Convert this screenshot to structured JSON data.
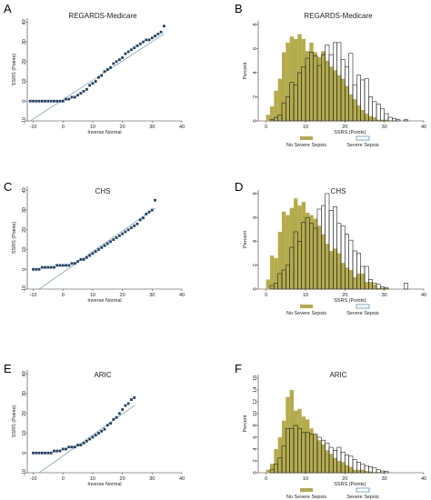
{
  "colors": {
    "qq_marker": "#1f3f66",
    "reference_line": "#5a8a97",
    "no_sepsis_fill": "#b5ab4c",
    "sepsis_outline": "#222222",
    "legend_sepsis_outline": "#3a6aa5",
    "axis": "#333333"
  },
  "chart_data": [
    {
      "panel": "A",
      "type": "scatter",
      "title": "REGARDS-Medicare",
      "xlabel": "Inverse Normal",
      "ylabel": "SSRS (Points)",
      "xlim": [
        -12,
        40
      ],
      "ylim": [
        -10,
        42
      ],
      "xticks": [
        "-10",
        "0",
        "10",
        "20",
        "30",
        "40"
      ],
      "yticks": [
        "-10",
        "0",
        "10",
        "20",
        "30",
        "40"
      ],
      "reference_line": [
        [
          -11,
          -10
        ],
        [
          34,
          34
        ]
      ],
      "x": [
        -11,
        -10,
        -9,
        -8,
        -7,
        -6,
        -5,
        -4,
        -3,
        -2,
        -1,
        0,
        1,
        2,
        3,
        4,
        5,
        6,
        7,
        8,
        9,
        10,
        11,
        12,
        13,
        14,
        15,
        16,
        17,
        18,
        19,
        20,
        21,
        22,
        23,
        24,
        25,
        26,
        27,
        28,
        29,
        30,
        31,
        32,
        33,
        34
      ],
      "y": [
        0,
        0,
        0,
        0,
        0,
        0,
        0,
        0,
        0,
        0,
        0,
        0,
        1,
        1,
        2,
        2,
        3,
        4,
        5,
        6,
        8,
        9,
        10,
        12,
        13,
        15,
        16,
        17,
        19,
        20,
        21,
        22,
        24,
        25,
        26,
        27,
        28,
        29,
        30,
        31,
        31,
        32,
        33,
        34,
        35,
        38
      ]
    },
    {
      "panel": "B",
      "type": "bar",
      "title": "REGARDS-Medicare",
      "xlabel": "SSRS (Points)",
      "ylabel": "Percent",
      "xlim": [
        -2,
        40
      ],
      "ylim": [
        0,
        8.3
      ],
      "xticks": [
        "0",
        "10",
        "20",
        "30",
        "40"
      ],
      "yticks": [
        "0",
        "2",
        "4",
        "6",
        "8"
      ],
      "bin_width": 1,
      "bin_start": [
        0,
        1,
        2,
        3,
        4,
        5,
        6,
        7,
        8,
        9,
        10,
        11,
        12,
        13,
        14,
        15,
        16,
        17,
        18,
        19,
        20,
        21,
        22,
        23,
        24,
        25,
        26,
        27,
        28,
        29,
        30,
        31,
        32,
        33,
        34,
        35
      ],
      "series": [
        {
          "name": "No Severe Sepsis",
          "values": [
            0.5,
            1.2,
            2.5,
            3.5,
            5.7,
            6.5,
            7.0,
            6.8,
            7.2,
            6.8,
            5.8,
            6.5,
            5.7,
            5.3,
            5.8,
            5.0,
            4.5,
            4.2,
            3.8,
            3.5,
            2.9,
            2.2,
            1.8,
            1.3,
            0.9,
            0.6,
            0.4,
            0.3,
            0.1,
            0.1,
            0.1,
            0.0,
            0.0,
            0.0,
            0.0,
            0.0
          ]
        },
        {
          "name": "Severe Sepsis",
          "values": [
            0.0,
            0.1,
            0.3,
            0.5,
            1.5,
            2.0,
            3.2,
            3.0,
            4.0,
            4.5,
            5.2,
            5.7,
            5.4,
            4.6,
            5.5,
            6.3,
            5.5,
            6.5,
            6.5,
            5.1,
            4.5,
            5.6,
            3.0,
            3.8,
            3.4,
            3.5,
            2.0,
            1.6,
            1.4,
            1.0,
            0.6,
            0.3,
            0.2,
            0.1,
            0.0,
            0.1
          ]
        }
      ]
    },
    {
      "panel": "C",
      "type": "scatter",
      "title": "CHS",
      "xlabel": "Inverse Normal",
      "ylabel": "SSRS (Points)",
      "xlim": [
        -12,
        40
      ],
      "ylim": [
        -10,
        42
      ],
      "xticks": [
        "-10",
        "0",
        "10",
        "20",
        "30",
        "40"
      ],
      "yticks": [
        "-10",
        "0",
        "10",
        "20",
        "30",
        "40"
      ],
      "reference_line": [
        [
          -8,
          -10
        ],
        [
          31,
          31
        ]
      ],
      "x": [
        -10,
        -9,
        -8,
        -7,
        -6,
        -5,
        -4,
        -3,
        -2,
        -1,
        0,
        1,
        2,
        3,
        4,
        5,
        6,
        7,
        8,
        9,
        10,
        11,
        12,
        13,
        14,
        15,
        16,
        17,
        18,
        19,
        20,
        21,
        22,
        23,
        24,
        25,
        26,
        27,
        28,
        29,
        30,
        31
      ],
      "y": [
        0,
        0,
        0,
        1,
        1,
        1,
        1,
        1,
        2,
        2,
        2,
        2,
        2,
        3,
        3,
        4,
        5,
        5,
        6,
        7,
        8,
        9,
        10,
        11,
        12,
        13,
        14,
        15,
        16,
        17,
        18,
        19,
        20,
        21,
        22,
        23,
        25,
        26,
        28,
        29,
        30,
        35
      ]
    },
    {
      "panel": "D",
      "type": "bar",
      "title": "CHS",
      "xlabel": "SSRS (Points)",
      "ylabel": "Percent",
      "xlim": [
        -2,
        40
      ],
      "ylim": [
        0,
        8.3
      ],
      "xticks": [
        "0",
        "10",
        "20",
        "30",
        "40"
      ],
      "yticks": [
        "0",
        "2",
        "4",
        "6",
        "8"
      ],
      "bin_width": 1,
      "bin_start": [
        0,
        1,
        2,
        3,
        4,
        5,
        6,
        7,
        8,
        9,
        10,
        11,
        12,
        13,
        14,
        15,
        16,
        17,
        18,
        19,
        20,
        21,
        22,
        23,
        24,
        25,
        26,
        27,
        28,
        29,
        30,
        31,
        32,
        33,
        34,
        35
      ],
      "series": [
        {
          "name": "No Severe Sepsis",
          "values": [
            0.8,
            2.8,
            2.6,
            4.8,
            6.5,
            6.2,
            6.8,
            7.6,
            7.0,
            7.3,
            6.4,
            6.2,
            5.9,
            5.3,
            4.6,
            3.8,
            3.2,
            3.4,
            3.0,
            2.2,
            1.8,
            1.6,
            1.0,
            1.3,
            1.3,
            0.6,
            0.6,
            0.4,
            0.1,
            0.1,
            0.1,
            0.0,
            0.0,
            0.0,
            0.0,
            0.0
          ]
        },
        {
          "name": "Severe Sepsis",
          "values": [
            0.0,
            0.3,
            0.5,
            1.3,
            1.6,
            2.0,
            3.5,
            4.8,
            4.0,
            5.6,
            6.0,
            5.5,
            5.1,
            6.7,
            7.0,
            8.0,
            6.6,
            6.9,
            5.5,
            5.3,
            4.6,
            4.1,
            3.2,
            3.0,
            1.9,
            1.9,
            0.8,
            0.5,
            0.4,
            0.2,
            0.1,
            0.0,
            0.0,
            0.0,
            0.0,
            0.5
          ]
        }
      ]
    },
    {
      "panel": "E",
      "type": "scatter",
      "title": "ARIC",
      "xlabel": "Inverse Normal",
      "ylabel": "SSRS (Points)",
      "xlim": [
        -12,
        40
      ],
      "ylim": [
        -10,
        42
      ],
      "xticks": [
        "-10",
        "0",
        "10",
        "20",
        "30",
        "40"
      ],
      "yticks": [
        "-10",
        "0",
        "10",
        "20",
        "30",
        "40"
      ],
      "reference_line": [
        [
          -8,
          -10
        ],
        [
          24,
          24
        ]
      ],
      "x": [
        -10,
        -9,
        -8,
        -7,
        -6,
        -5,
        -4,
        -3,
        -2,
        -1,
        0,
        1,
        2,
        3,
        4,
        5,
        6,
        7,
        8,
        9,
        10,
        11,
        12,
        13,
        14,
        15,
        16,
        17,
        18,
        19,
        20,
        21,
        22,
        23,
        24
      ],
      "y": [
        0,
        0,
        0,
        0,
        0,
        0,
        0,
        1,
        1,
        1,
        2,
        2,
        3,
        3,
        3,
        4,
        4,
        5,
        6,
        7,
        8,
        9,
        10,
        11,
        12,
        14,
        15,
        17,
        18,
        20,
        22,
        24,
        25,
        27,
        28
      ]
    },
    {
      "panel": "F",
      "type": "bar",
      "title": "ARIC",
      "xlabel": "SSRS (Points)",
      "ylabel": "Percent",
      "xlim": [
        -2,
        40
      ],
      "ylim": [
        0,
        16.6
      ],
      "xticks": [
        "0",
        "10",
        "20",
        "30",
        "40"
      ],
      "yticks": [
        "0",
        "2",
        "4",
        "6",
        "8",
        "10",
        "12",
        "14",
        "16"
      ],
      "bin_width": 1,
      "bin_start": [
        0,
        1,
        2,
        3,
        4,
        5,
        6,
        7,
        8,
        9,
        10,
        11,
        12,
        13,
        14,
        15,
        16,
        17,
        18,
        19,
        20,
        21,
        22,
        23,
        24,
        25,
        26,
        27,
        28,
        29,
        30
      ],
      "series": [
        {
          "name": "No Severe Sepsis",
          "values": [
            0.5,
            1.5,
            4.0,
            6.0,
            8.8,
            12.8,
            14.0,
            10.5,
            10.8,
            9.5,
            9.0,
            7.5,
            6.5,
            5.5,
            4.8,
            3.8,
            3.2,
            2.5,
            2.0,
            1.8,
            1.3,
            1.0,
            0.5,
            0.5,
            0.5,
            0.3,
            0.2,
            0.1,
            0.1,
            0.0,
            0.0
          ]
        },
        {
          "name": "Severe Sepsis",
          "values": [
            0.0,
            0.5,
            1.5,
            2.5,
            4.5,
            7.5,
            7.5,
            8.0,
            7.5,
            6.8,
            6.8,
            6.5,
            6.5,
            6.0,
            5.5,
            5.0,
            4.3,
            3.8,
            4.3,
            3.5,
            3.0,
            2.8,
            2.2,
            1.8,
            1.5,
            1.2,
            1.0,
            0.8,
            0.5,
            0.3,
            0.2
          ]
        }
      ]
    }
  ]
}
